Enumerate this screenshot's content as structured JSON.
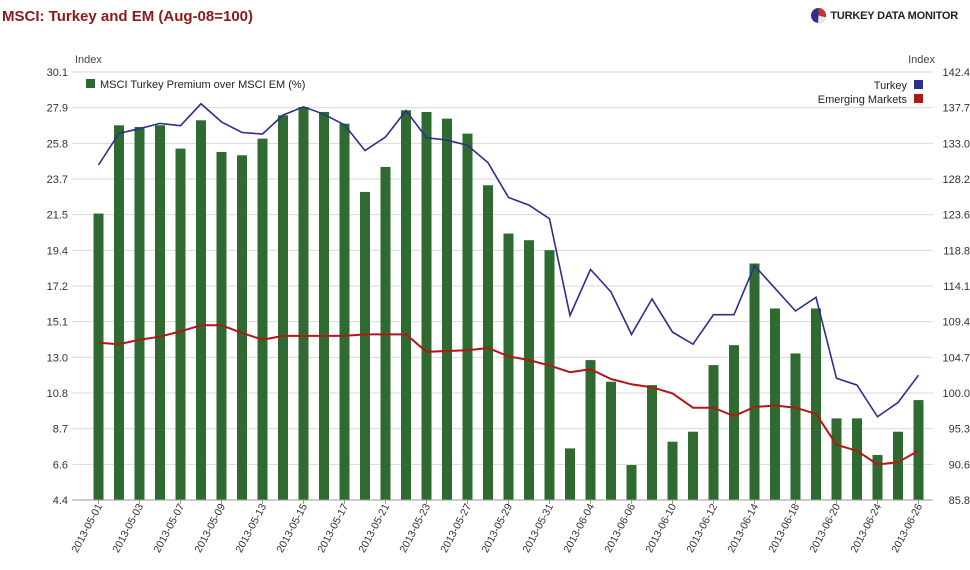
{
  "header": {
    "title": "MSCI: Turkey and EM (Aug-08=100)",
    "brand": "TURKEY DATA MONITOR"
  },
  "colors": {
    "bar": "#2f6a30",
    "turkey": "#2e2e8c",
    "em": "#b01818",
    "grid": "#d9d9d9",
    "title": "#8b1a1a"
  },
  "chart_data": {
    "type": "bar",
    "left_axis": {
      "title": "Index",
      "ticks": [
        "30.1",
        "27.9",
        "25.8",
        "23.7",
        "21.5",
        "19.4",
        "17.2",
        "15.1",
        "13.0",
        "10.8",
        "8.7",
        "6.6",
        "4.4"
      ],
      "range": [
        4.4,
        30.1
      ]
    },
    "right_axis": {
      "title": "Index",
      "ticks": [
        "142.4",
        "137.7",
        "133.0",
        "128.2",
        "123.6",
        "118.8",
        "114.1",
        "109.4",
        "104.7",
        "100.0",
        "95.3",
        "90.6",
        "85.8"
      ],
      "range": [
        85.8,
        142.4
      ]
    },
    "x_ticks": [
      "2013-05-01",
      "2013-05-03",
      "2013-05-07",
      "2013-05-09",
      "2013-05-13",
      "2013-05-15",
      "2013-05-17",
      "2013-05-21",
      "2013-05-23",
      "2013-05-27",
      "2013-05-29",
      "2013-05-31",
      "2013-06-04",
      "2013-06-06",
      "2013-06-10",
      "2013-06-12",
      "2013-06-14",
      "2013-06-18",
      "2013-06-20",
      "2013-06-24",
      "2013-06-26"
    ],
    "series": [
      {
        "name": "MSCI Turkey Premium over MSCI EM (%)",
        "kind": "bar",
        "axis": "left",
        "values": [
          21.6,
          26.9,
          26.8,
          26.9,
          25.5,
          27.2,
          25.3,
          25.1,
          26.1,
          27.5,
          28.0,
          27.7,
          27.0,
          22.9,
          24.4,
          27.8,
          27.7,
          27.3,
          26.4,
          23.3,
          20.4,
          20.0,
          19.4,
          7.5,
          12.8,
          11.5,
          6.5,
          11.3,
          7.9,
          8.5,
          12.5,
          13.7,
          18.6,
          15.9,
          13.2,
          15.9,
          9.3,
          9.3,
          7.1,
          8.5,
          10.4
        ]
      },
      {
        "name": "Turkey",
        "kind": "line",
        "axis": "right",
        "values": [
          130.1,
          134.3,
          134.9,
          135.6,
          135.3,
          138.2,
          135.8,
          134.4,
          134.2,
          136.7,
          137.8,
          136.8,
          135.4,
          132.0,
          133.8,
          137.3,
          133.7,
          133.4,
          132.7,
          130.4,
          125.8,
          124.8,
          123.0,
          110.2,
          116.3,
          113.3,
          107.7,
          112.4,
          108.0,
          106.4,
          110.3,
          110.3,
          116.8,
          113.8,
          110.8,
          112.6,
          101.9,
          101.0,
          96.8,
          98.7,
          102.3
        ]
      },
      {
        "name": "Emerging Markets",
        "kind": "line",
        "axis": "right",
        "values": [
          106.6,
          106.4,
          107.0,
          107.4,
          108.1,
          108.9,
          108.9,
          107.9,
          107.0,
          107.5,
          107.5,
          107.5,
          107.5,
          107.7,
          107.7,
          107.7,
          105.4,
          105.5,
          105.6,
          105.9,
          104.8,
          104.3,
          103.6,
          102.7,
          103.1,
          101.8,
          101.1,
          100.7,
          99.9,
          98.0,
          98.0,
          96.9,
          98.1,
          98.3,
          98.0,
          97.2,
          93.1,
          92.3,
          90.5,
          90.8,
          92.3
        ]
      }
    ]
  }
}
